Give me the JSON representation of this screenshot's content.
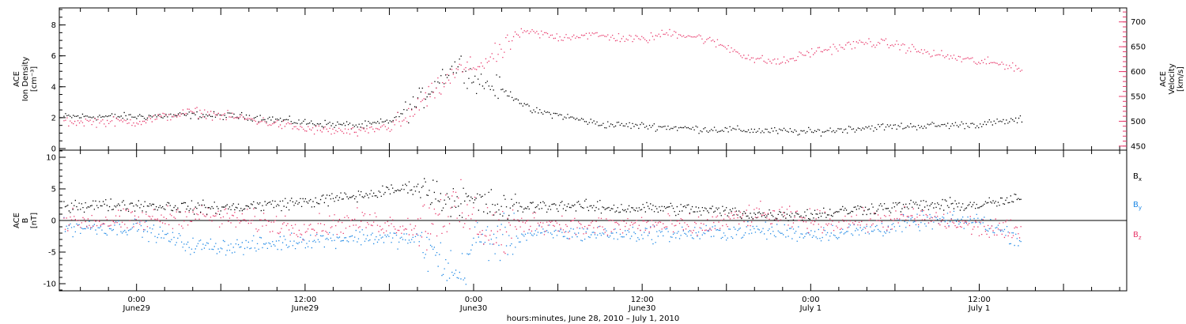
{
  "colors": {
    "black": "#000000",
    "pink": "#e8396b",
    "blue": "#1e88e5"
  },
  "chart_data": [
    {
      "type": "scatter",
      "panel": "ion-density-velocity",
      "left_axis": {
        "label_lines": [
          "ACE",
          "Ion Density",
          "[cm⁻³]"
        ],
        "ylim": [
          0,
          9
        ],
        "ticks": [
          "0",
          "2",
          "4",
          "6",
          "8"
        ]
      },
      "right_axis": {
        "label_lines": [
          "ACE",
          "Velocity",
          "[km/s]"
        ],
        "ylim": [
          445,
          725
        ],
        "ticks": [
          "450",
          "500",
          "550",
          "600",
          "650",
          "700"
        ]
      },
      "series": [
        {
          "color": "#000000",
          "axis": "left",
          "keyframes": [
            [
              0,
              2.1
            ],
            [
              4,
              2.2
            ],
            [
              8,
              2.1
            ],
            [
              12,
              1.7
            ],
            [
              16,
              1.5
            ],
            [
              18,
              1.8
            ],
            [
              20,
              3.0
            ],
            [
              22,
              5.0
            ],
            [
              23,
              5.5
            ],
            [
              24,
              4.5
            ],
            [
              26,
              3.8
            ],
            [
              27,
              3.3
            ],
            [
              28,
              2.5
            ],
            [
              30,
              2.2
            ],
            [
              33,
              1.6
            ],
            [
              36,
              1.5
            ],
            [
              40,
              1.3
            ],
            [
              44,
              1.2
            ],
            [
              48,
              1.1
            ],
            [
              52,
              1.4
            ],
            [
              56,
              1.5
            ],
            [
              60,
              1.6
            ],
            [
              62,
              1.8
            ],
            [
              63,
              1.9
            ]
          ]
        },
        {
          "color": "#e8396b",
          "axis": "right",
          "keyframes": [
            [
              0,
              500
            ],
            [
              4,
              520
            ],
            [
              8,
              505
            ],
            [
              12,
              485
            ],
            [
              16,
              478
            ],
            [
              19,
              500
            ],
            [
              20,
              530
            ],
            [
              22,
              580
            ],
            [
              23,
              605
            ],
            [
              24,
              610
            ],
            [
              25,
              625
            ],
            [
              26,
              640
            ],
            [
              27,
              675
            ],
            [
              28,
              680
            ],
            [
              30,
              670
            ],
            [
              32,
              675
            ],
            [
              34,
              670
            ],
            [
              36,
              665
            ],
            [
              38,
              680
            ],
            [
              40,
              670
            ],
            [
              42,
              650
            ],
            [
              44,
              625
            ],
            [
              46,
              620
            ],
            [
              48,
              640
            ],
            [
              50,
              650
            ],
            [
              52,
              660
            ],
            [
              54,
              655
            ],
            [
              56,
              640
            ],
            [
              58,
              630
            ],
            [
              60,
              620
            ],
            [
              62,
              615
            ],
            [
              63,
              605
            ]
          ]
        }
      ]
    },
    {
      "type": "scatter",
      "panel": "magnetic-field",
      "left_axis": {
        "label_lines": [
          "ACE",
          "B",
          "[nT]"
        ],
        "ylim": [
          -11,
          11
        ],
        "ticks": [
          "-10",
          "-5",
          "0",
          "5",
          "10"
        ]
      },
      "series": [
        {
          "name": "Bx",
          "name_main": "B",
          "name_sub": "x",
          "color": "#000000",
          "keyframes": [
            [
              0,
              2.5
            ],
            [
              6,
              2.0
            ],
            [
              12,
              3.0
            ],
            [
              16,
              4.0
            ],
            [
              20,
              5.5
            ],
            [
              22,
              3.5
            ],
            [
              24,
              3.0
            ],
            [
              26,
              2.0
            ],
            [
              30,
              2.5
            ],
            [
              34,
              2.0
            ],
            [
              38,
              2.0
            ],
            [
              42,
              1.5
            ],
            [
              44,
              1.0
            ],
            [
              48,
              1.0
            ],
            [
              52,
              2.0
            ],
            [
              56,
              2.5
            ],
            [
              60,
              2.5
            ],
            [
              63,
              3.5
            ]
          ]
        },
        {
          "name": "By",
          "name_main": "B",
          "name_sub": "y",
          "color": "#1e88e5",
          "keyframes": [
            [
              0,
              -1.0
            ],
            [
              4,
              -4.0
            ],
            [
              8,
              -4.0
            ],
            [
              12,
              -3.0
            ],
            [
              16,
              -2.5
            ],
            [
              20,
              -3.0
            ],
            [
              22,
              -7.0
            ],
            [
              23,
              -9.0
            ],
            [
              24,
              -3.0
            ],
            [
              26,
              -3.0
            ],
            [
              28,
              -2.0
            ],
            [
              32,
              -2.0
            ],
            [
              36,
              -2.0
            ],
            [
              40,
              -2.0
            ],
            [
              44,
              -1.5
            ],
            [
              48,
              -2.0
            ],
            [
              52,
              -1.5
            ],
            [
              56,
              0.0
            ],
            [
              60,
              0.0
            ],
            [
              62,
              -2.0
            ],
            [
              63,
              -3.0
            ]
          ]
        },
        {
          "name": "Bz",
          "name_main": "B",
          "name_sub": "z",
          "color": "#e8396b",
          "keyframes": [
            [
              0,
              0.0
            ],
            [
              4,
              1.0
            ],
            [
              8,
              0.0
            ],
            [
              12,
              -1.0
            ],
            [
              16,
              0.0
            ],
            [
              20,
              -1.0
            ],
            [
              22,
              2.0
            ],
            [
              24,
              0.0
            ],
            [
              26,
              -2.0
            ],
            [
              28,
              0.0
            ],
            [
              32,
              -1.0
            ],
            [
              36,
              -0.5
            ],
            [
              40,
              -1.0
            ],
            [
              44,
              1.0
            ],
            [
              48,
              0.0
            ],
            [
              52,
              0.0
            ],
            [
              56,
              0.5
            ],
            [
              60,
              -1.0
            ],
            [
              63,
              -2.0
            ]
          ]
        }
      ]
    }
  ],
  "x_axis": {
    "xlim_hours": [
      -5.5,
      70.5
    ],
    "ticks": [
      {
        "hour": 0,
        "time": "0:00",
        "date": "June29"
      },
      {
        "hour": 12,
        "time": "12:00",
        "date": "June29"
      },
      {
        "hour": 24,
        "time": "0:00",
        "date": "June30"
      },
      {
        "hour": 36,
        "time": "12:00",
        "date": "June30"
      },
      {
        "hour": 48,
        "time": "0:00",
        "date": "July 1"
      },
      {
        "hour": 60,
        "time": "12:00",
        "date": "July 1"
      }
    ],
    "minor_tick_hours": 2,
    "data_end_hour": 63,
    "label": "hours:minutes, June 28, 2010 – July  1, 2010"
  }
}
